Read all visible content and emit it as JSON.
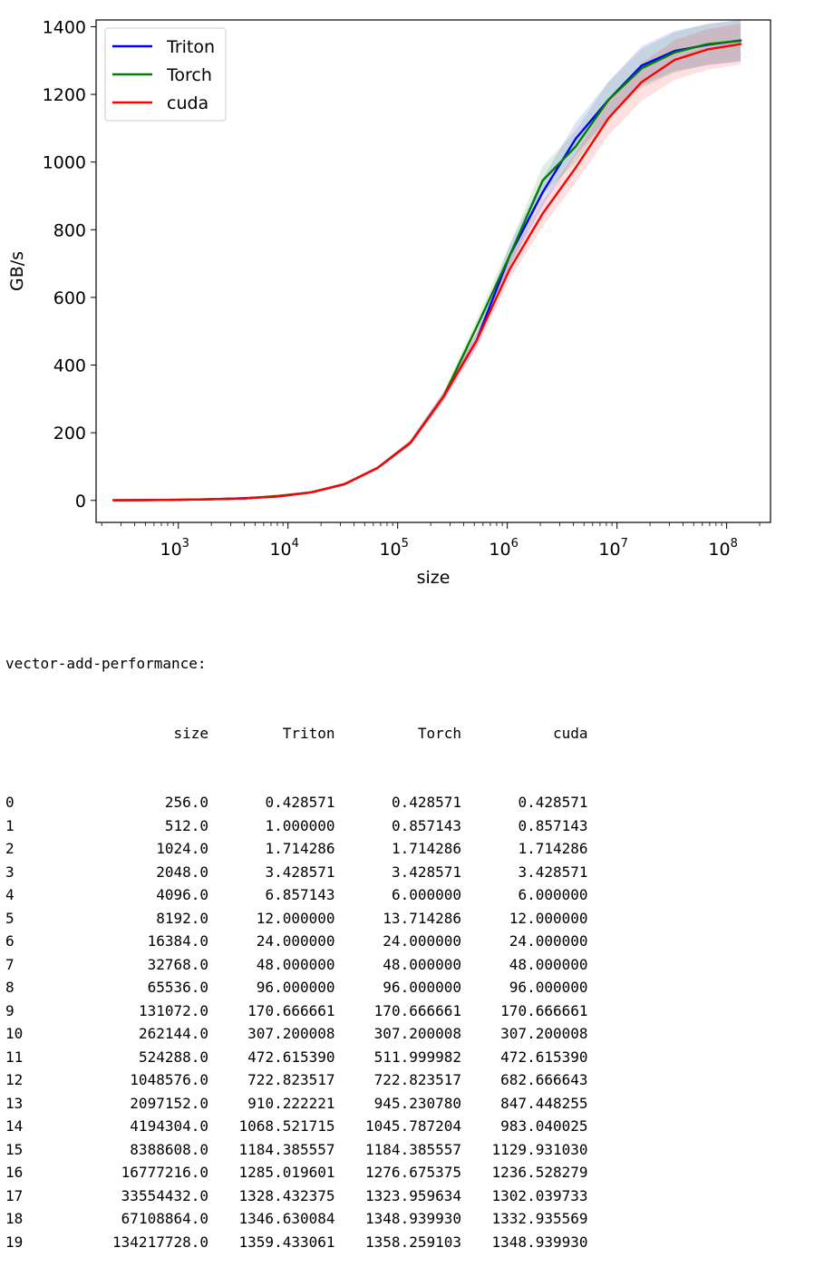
{
  "chart_data": {
    "type": "line",
    "xscale": "log",
    "xlabel": "size",
    "ylabel": "GB/s",
    "xlim_log10": [
      2.25,
      8.4
    ],
    "ylim": [
      -65,
      1420
    ],
    "yticks": [
      0,
      200,
      400,
      600,
      800,
      1000,
      1200,
      1400
    ],
    "xticks": [
      {
        "base": "10",
        "exp": "3",
        "value": 1000
      },
      {
        "base": "10",
        "exp": "4",
        "value": 10000
      },
      {
        "base": "10",
        "exp": "5",
        "value": 100000
      },
      {
        "base": "10",
        "exp": "6",
        "value": 1000000
      },
      {
        "base": "10",
        "exp": "7",
        "value": 10000000
      },
      {
        "base": "10",
        "exp": "8",
        "value": 100000000
      }
    ],
    "legend_position": "upper-left",
    "x": [
      256,
      512,
      1024,
      2048,
      4096,
      8192,
      16384,
      32768,
      65536,
      131072,
      262144,
      524288,
      1048576,
      2097152,
      4194304,
      8388608,
      16777216,
      33554432,
      67108864,
      134217728
    ],
    "series": [
      {
        "name": "Triton",
        "color": "#0000ff",
        "values": [
          0.428571,
          1.0,
          1.714286,
          3.428571,
          6.857143,
          12.0,
          24.0,
          48.0,
          96.0,
          170.666661,
          307.200008,
          472.61539,
          722.823517,
          910.222221,
          1068.521715,
          1184.385557,
          1285.019601,
          1328.432375,
          1346.630084,
          1359.433061
        ]
      },
      {
        "name": "Torch",
        "color": "#008000",
        "values": [
          0.428571,
          0.857143,
          1.714286,
          3.428571,
          6.0,
          13.714286,
          24.0,
          48.0,
          96.0,
          170.666661,
          307.200008,
          511.999982,
          722.823517,
          945.23078,
          1045.787204,
          1184.385557,
          1276.675375,
          1323.959634,
          1348.93993,
          1358.259103
        ]
      },
      {
        "name": "cuda",
        "color": "#ff0000",
        "values": [
          0.428571,
          0.857143,
          1.714286,
          3.428571,
          6.0,
          12.0,
          24.0,
          48.0,
          96.0,
          170.666661,
          307.200008,
          472.61539,
          682.666643,
          847.448255,
          983.040025,
          1129.93103,
          1236.528279,
          1302.039733,
          1332.935569,
          1348.93993
        ]
      }
    ]
  },
  "output": {
    "title": "vector-add-performance:",
    "columns": [
      "size",
      "Triton",
      "Torch",
      "cuda"
    ],
    "rows": [
      [
        "0",
        "256.0",
        "0.428571",
        "0.428571",
        "0.428571"
      ],
      [
        "1",
        "512.0",
        "1.000000",
        "0.857143",
        "0.857143"
      ],
      [
        "2",
        "1024.0",
        "1.714286",
        "1.714286",
        "1.714286"
      ],
      [
        "3",
        "2048.0",
        "3.428571",
        "3.428571",
        "3.428571"
      ],
      [
        "4",
        "4096.0",
        "6.857143",
        "6.000000",
        "6.000000"
      ],
      [
        "5",
        "8192.0",
        "12.000000",
        "13.714286",
        "12.000000"
      ],
      [
        "6",
        "16384.0",
        "24.000000",
        "24.000000",
        "24.000000"
      ],
      [
        "7",
        "32768.0",
        "48.000000",
        "48.000000",
        "48.000000"
      ],
      [
        "8",
        "65536.0",
        "96.000000",
        "96.000000",
        "96.000000"
      ],
      [
        "9",
        "131072.0",
        "170.666661",
        "170.666661",
        "170.666661"
      ],
      [
        "10",
        "262144.0",
        "307.200008",
        "307.200008",
        "307.200008"
      ],
      [
        "11",
        "524288.0",
        "472.615390",
        "511.999982",
        "472.615390"
      ],
      [
        "12",
        "1048576.0",
        "722.823517",
        "722.823517",
        "682.666643"
      ],
      [
        "13",
        "2097152.0",
        "910.222221",
        "945.230780",
        "847.448255"
      ],
      [
        "14",
        "4194304.0",
        "1068.521715",
        "1045.787204",
        "983.040025"
      ],
      [
        "15",
        "8388608.0",
        "1184.385557",
        "1184.385557",
        "1129.931030"
      ],
      [
        "16",
        "16777216.0",
        "1285.019601",
        "1276.675375",
        "1236.528279"
      ],
      [
        "17",
        "33554432.0",
        "1328.432375",
        "1323.959634",
        "1302.039733"
      ],
      [
        "18",
        "67108864.0",
        "1346.630084",
        "1348.939930",
        "1332.935569"
      ],
      [
        "19",
        "134217728.0",
        "1359.433061",
        "1358.259103",
        "1348.939930"
      ]
    ]
  }
}
